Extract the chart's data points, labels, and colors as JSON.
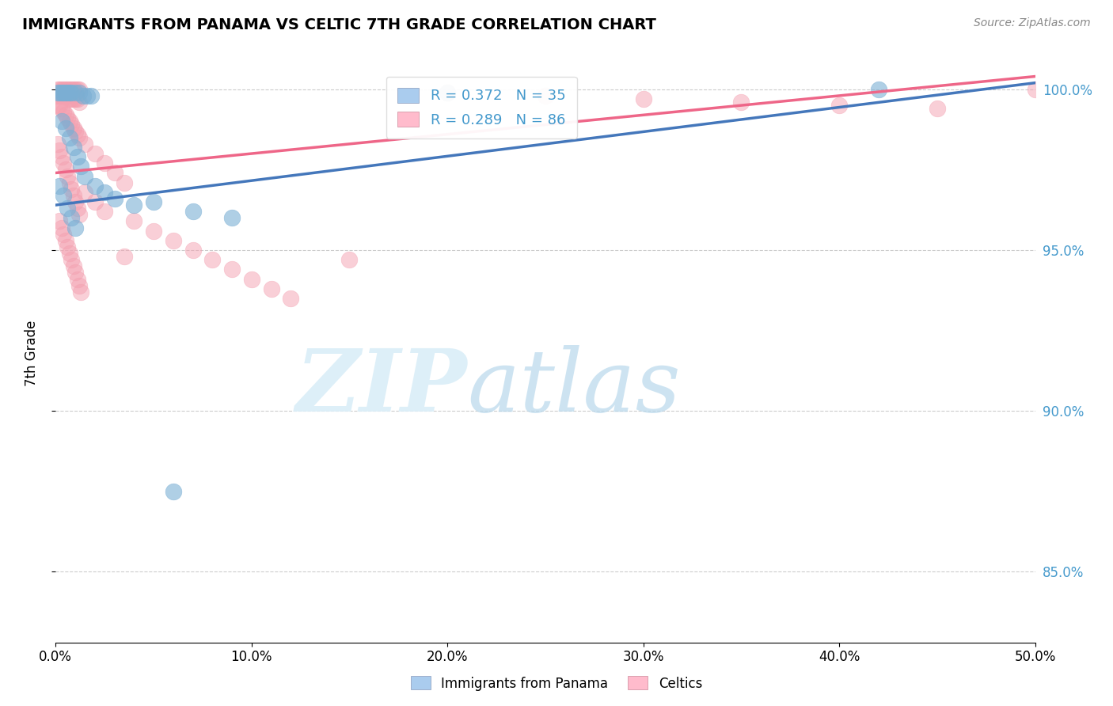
{
  "title": "IMMIGRANTS FROM PANAMA VS CELTIC 7TH GRADE CORRELATION CHART",
  "source": "Source: ZipAtlas.com",
  "ylabel": "7th Grade",
  "xlabel_label_blue": "Immigrants from Panama",
  "xlabel_label_pink": "Celtics",
  "xmin": 0.0,
  "xmax": 0.5,
  "ymin": 0.828,
  "ymax": 1.008,
  "yticks": [
    0.85,
    0.9,
    0.95,
    1.0
  ],
  "ytick_labels": [
    "85.0%",
    "90.0%",
    "95.0%",
    "100.0%"
  ],
  "xticks": [
    0.0,
    0.1,
    0.2,
    0.3,
    0.4,
    0.5
  ],
  "xtick_labels": [
    "0.0%",
    "10.0%",
    "20.0%",
    "30.0%",
    "40.0%",
    "50.0%"
  ],
  "R_blue": 0.372,
  "N_blue": 35,
  "R_pink": 0.289,
  "N_pink": 86,
  "blue_color": "#7BAFD4",
  "pink_color": "#F4A0B0",
  "blue_line_color": "#4477BB",
  "pink_line_color": "#EE6688",
  "blue_line_x0": 0.0,
  "blue_line_y0": 0.964,
  "blue_line_x1": 0.5,
  "blue_line_y1": 1.002,
  "pink_line_x0": 0.0,
  "pink_line_y0": 0.974,
  "pink_line_x1": 0.5,
  "pink_line_y1": 1.004,
  "blue_dots": [
    [
      0.001,
      0.999
    ],
    [
      0.002,
      0.999
    ],
    [
      0.003,
      0.999
    ],
    [
      0.004,
      0.999
    ],
    [
      0.005,
      0.999
    ],
    [
      0.006,
      0.999
    ],
    [
      0.007,
      0.999
    ],
    [
      0.008,
      0.999
    ],
    [
      0.01,
      0.999
    ],
    [
      0.012,
      0.999
    ],
    [
      0.014,
      0.998
    ],
    [
      0.016,
      0.998
    ],
    [
      0.018,
      0.998
    ],
    [
      0.003,
      0.99
    ],
    [
      0.005,
      0.988
    ],
    [
      0.007,
      0.985
    ],
    [
      0.009,
      0.982
    ],
    [
      0.011,
      0.979
    ],
    [
      0.013,
      0.976
    ],
    [
      0.015,
      0.973
    ],
    [
      0.002,
      0.97
    ],
    [
      0.004,
      0.967
    ],
    [
      0.006,
      0.963
    ],
    [
      0.008,
      0.96
    ],
    [
      0.01,
      0.957
    ],
    [
      0.02,
      0.97
    ],
    [
      0.025,
      0.968
    ],
    [
      0.03,
      0.966
    ],
    [
      0.04,
      0.964
    ],
    [
      0.05,
      0.965
    ],
    [
      0.07,
      0.962
    ],
    [
      0.09,
      0.96
    ],
    [
      0.06,
      0.875
    ],
    [
      0.2,
      0.999
    ],
    [
      0.42,
      1.0
    ]
  ],
  "pink_dots": [
    [
      0.001,
      1.0
    ],
    [
      0.002,
      1.0
    ],
    [
      0.003,
      1.0
    ],
    [
      0.004,
      1.0
    ],
    [
      0.005,
      1.0
    ],
    [
      0.006,
      1.0
    ],
    [
      0.007,
      1.0
    ],
    [
      0.008,
      1.0
    ],
    [
      0.009,
      1.0
    ],
    [
      0.01,
      1.0
    ],
    [
      0.011,
      1.0
    ],
    [
      0.012,
      1.0
    ],
    [
      0.001,
      0.998
    ],
    [
      0.002,
      0.998
    ],
    [
      0.003,
      0.998
    ],
    [
      0.004,
      0.998
    ],
    [
      0.005,
      0.998
    ],
    [
      0.006,
      0.998
    ],
    [
      0.007,
      0.997
    ],
    [
      0.008,
      0.997
    ],
    [
      0.009,
      0.997
    ],
    [
      0.01,
      0.997
    ],
    [
      0.011,
      0.997
    ],
    [
      0.012,
      0.996
    ],
    [
      0.001,
      0.995
    ],
    [
      0.002,
      0.995
    ],
    [
      0.003,
      0.994
    ],
    [
      0.004,
      0.993
    ],
    [
      0.005,
      0.992
    ],
    [
      0.006,
      0.991
    ],
    [
      0.007,
      0.99
    ],
    [
      0.008,
      0.989
    ],
    [
      0.009,
      0.988
    ],
    [
      0.01,
      0.987
    ],
    [
      0.011,
      0.986
    ],
    [
      0.012,
      0.985
    ],
    [
      0.001,
      0.983
    ],
    [
      0.002,
      0.981
    ],
    [
      0.003,
      0.979
    ],
    [
      0.004,
      0.977
    ],
    [
      0.005,
      0.975
    ],
    [
      0.006,
      0.973
    ],
    [
      0.007,
      0.971
    ],
    [
      0.008,
      0.969
    ],
    [
      0.009,
      0.967
    ],
    [
      0.01,
      0.965
    ],
    [
      0.011,
      0.963
    ],
    [
      0.012,
      0.961
    ],
    [
      0.002,
      0.959
    ],
    [
      0.003,
      0.957
    ],
    [
      0.004,
      0.955
    ],
    [
      0.005,
      0.953
    ],
    [
      0.006,
      0.951
    ],
    [
      0.007,
      0.949
    ],
    [
      0.008,
      0.947
    ],
    [
      0.009,
      0.945
    ],
    [
      0.01,
      0.943
    ],
    [
      0.011,
      0.941
    ],
    [
      0.012,
      0.939
    ],
    [
      0.013,
      0.937
    ],
    [
      0.015,
      0.983
    ],
    [
      0.02,
      0.98
    ],
    [
      0.025,
      0.977
    ],
    [
      0.03,
      0.974
    ],
    [
      0.035,
      0.971
    ],
    [
      0.015,
      0.968
    ],
    [
      0.02,
      0.965
    ],
    [
      0.025,
      0.962
    ],
    [
      0.04,
      0.959
    ],
    [
      0.05,
      0.956
    ],
    [
      0.06,
      0.953
    ],
    [
      0.07,
      0.95
    ],
    [
      0.08,
      0.947
    ],
    [
      0.09,
      0.944
    ],
    [
      0.1,
      0.941
    ],
    [
      0.11,
      0.938
    ],
    [
      0.12,
      0.935
    ],
    [
      0.15,
      0.947
    ],
    [
      0.035,
      0.948
    ],
    [
      0.5,
      1.0
    ],
    [
      0.2,
      0.999
    ],
    [
      0.25,
      0.998
    ],
    [
      0.3,
      0.997
    ],
    [
      0.35,
      0.996
    ],
    [
      0.4,
      0.995
    ],
    [
      0.45,
      0.994
    ]
  ]
}
